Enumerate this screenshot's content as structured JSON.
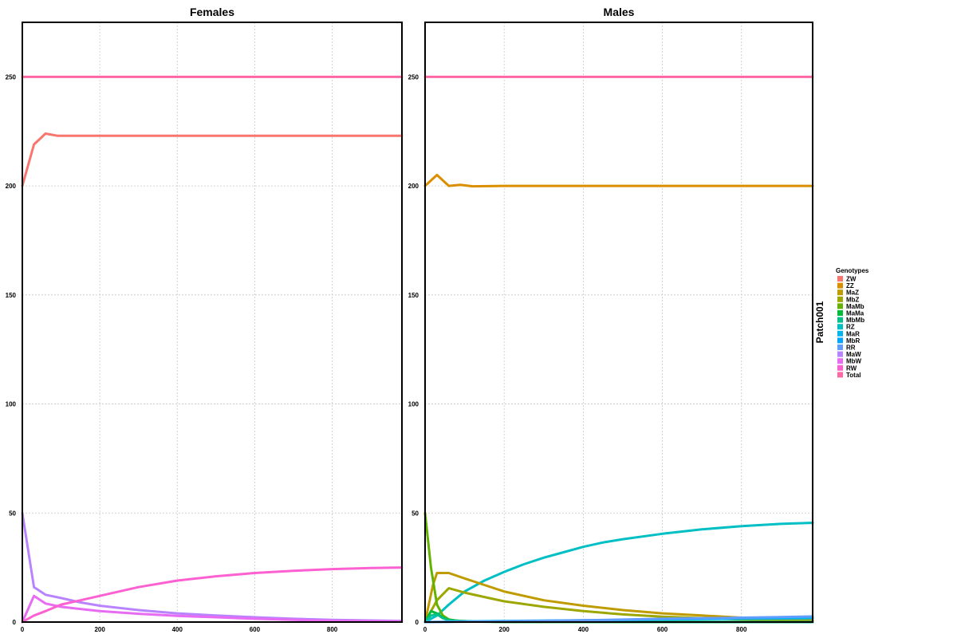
{
  "chart_data": {
    "type": "line",
    "strip_label": "Patch001",
    "legend": {
      "title": "Genotypes",
      "placement": "right",
      "entries": [
        {
          "name": "ZW",
          "color": "#F8766D"
        },
        {
          "name": "ZZ",
          "color": "#DB8E00"
        },
        {
          "name": "MaZ",
          "color": "#C09B00"
        },
        {
          "name": "MbZ",
          "color": "#9DA700"
        },
        {
          "name": "MaMb",
          "color": "#64B200"
        },
        {
          "name": "MaMa",
          "color": "#00BA38"
        },
        {
          "name": "MbMb",
          "color": "#00C08B"
        },
        {
          "name": "RZ",
          "color": "#00BFC4"
        },
        {
          "name": "MaR",
          "color": "#00B4F0"
        },
        {
          "name": "MbR",
          "color": "#00A5FF"
        },
        {
          "name": "RR",
          "color": "#619CFF"
        },
        {
          "name": "MaW",
          "color": "#B983FF"
        },
        {
          "name": "MbW",
          "color": "#E76BF3"
        },
        {
          "name": "RW",
          "color": "#FD61D1"
        },
        {
          "name": "Total",
          "color": "#FF67A4"
        }
      ]
    },
    "panels": [
      {
        "title": "Females",
        "xlim": [
          0,
          980
        ],
        "ylim": [
          0,
          275
        ],
        "x_ticks": [
          0,
          200,
          400,
          600,
          800
        ],
        "y_ticks": [
          0,
          50,
          100,
          150,
          200,
          250
        ],
        "grid": true,
        "series": [
          {
            "name": "Total",
            "color": "#FF67A4",
            "x": [
              0,
              980
            ],
            "y": [
              250,
              250
            ]
          },
          {
            "name": "ZW",
            "color": "#F8766D",
            "x": [
              0,
              30,
              60,
              90,
              120,
              200,
              400,
              600,
              800,
              980
            ],
            "y": [
              200,
              219,
              224,
              223,
              223,
              223,
              223,
              223,
              223,
              223
            ]
          },
          {
            "name": "MaW",
            "color": "#B983FF",
            "x": [
              0,
              30,
              60,
              100,
              150,
              200,
              300,
              400,
              500,
              600,
              700,
              800,
              980
            ],
            "y": [
              50,
              16,
              12.5,
              11,
              9,
              7.5,
              5.5,
              4,
              3,
              2.2,
              1.5,
              1,
              0.5
            ]
          },
          {
            "name": "MbW",
            "color": "#E76BF3",
            "x": [
              0,
              30,
              60,
              100,
              150,
              200,
              300,
              400,
              500,
              600,
              700,
              800,
              980
            ],
            "y": [
              0,
              12,
              8.5,
              7,
              6,
              5,
              3.8,
              2.8,
              2.2,
              1.5,
              1,
              0.6,
              0.3
            ]
          },
          {
            "name": "RW",
            "color": "#FD61D1",
            "x": [
              0,
              30,
              60,
              100,
              150,
              200,
              250,
              300,
              400,
              500,
              600,
              700,
              800,
              900,
              980
            ],
            "y": [
              0,
              3,
              5,
              8,
              10,
              12,
              14,
              16,
              19,
              21,
              22.5,
              23.5,
              24.3,
              24.8,
              25
            ]
          }
        ]
      },
      {
        "title": "Males",
        "xlim": [
          0,
          980
        ],
        "ylim": [
          0,
          275
        ],
        "x_ticks": [
          0,
          200,
          400,
          600,
          800
        ],
        "y_ticks": [
          0,
          50,
          100,
          150,
          200,
          250
        ],
        "grid": true,
        "series": [
          {
            "name": "Total",
            "color": "#FF67A4",
            "x": [
              0,
              980
            ],
            "y": [
              250,
              250
            ]
          },
          {
            "name": "ZZ",
            "color": "#DB8E00",
            "x": [
              0,
              30,
              60,
              90,
              120,
              200,
              400,
              600,
              800,
              980
            ],
            "y": [
              200,
              205,
              200,
              200.5,
              199.8,
              200,
              200,
              200,
              200,
              200
            ]
          },
          {
            "name": "RZ",
            "color": "#00BFC4",
            "x": [
              0,
              30,
              60,
              100,
              150,
              200,
              250,
              300,
              350,
              400,
              450,
              500,
              600,
              700,
              800,
              900,
              980
            ],
            "y": [
              0,
              3,
              8,
              14,
              19,
              23,
              26.5,
              29.5,
              32,
              34.5,
              36.5,
              38,
              40.5,
              42.5,
              44,
              45,
              45.5
            ]
          },
          {
            "name": "MaZ",
            "color": "#C09B00",
            "x": [
              0,
              20,
              30,
              60,
              100,
              150,
              200,
              300,
              400,
              500,
              600,
              700,
              800,
              900,
              980
            ],
            "y": [
              0,
              17,
              22.5,
              22.5,
              20,
              17,
              14,
              10,
              7.5,
              5.5,
              4,
              3,
              2,
              1.2,
              0.8
            ]
          },
          {
            "name": "MbZ",
            "color": "#9DA700",
            "x": [
              0,
              30,
              60,
              100,
              150,
              200,
              300,
              400,
              500,
              600,
              700,
              800,
              900,
              980
            ],
            "y": [
              0,
              10,
              15.5,
              13.5,
              11.5,
              9.5,
              7,
              5,
              3.5,
              2.5,
              1.8,
              1.2,
              0.8,
              0.5
            ]
          },
          {
            "name": "MaMb",
            "color": "#64B200",
            "x": [
              0,
              15,
              30,
              45,
              60,
              80,
              120,
              200,
              980
            ],
            "y": [
              50,
              25,
              8,
              3,
              1.2,
              0.6,
              0.3,
              0.1,
              0
            ]
          },
          {
            "name": "MaMa",
            "color": "#00BA38",
            "x": [
              0,
              15,
              30,
              45,
              60,
              90,
              120,
              200,
              980
            ],
            "y": [
              0,
              5,
              4,
              2,
              1,
              0.5,
              0.3,
              0.1,
              0
            ]
          },
          {
            "name": "MbMb",
            "color": "#00C08B",
            "x": [
              0,
              15,
              30,
              45,
              60,
              90,
              120,
              200,
              980
            ],
            "y": [
              0,
              3,
              3.5,
              1.8,
              0.8,
              0.4,
              0.2,
              0.1,
              0
            ]
          },
          {
            "name": "MaR",
            "color": "#00B4F0",
            "x": [
              0,
              100,
              200,
              400,
              600,
              800,
              980
            ],
            "y": [
              0,
              0.3,
              0.5,
              0.8,
              1.2,
              1.5,
              1.8
            ]
          },
          {
            "name": "RR",
            "color": "#619CFF",
            "x": [
              0,
              200,
              400,
              600,
              800,
              900,
              980
            ],
            "y": [
              0,
              0.3,
              0.8,
              1.5,
              2,
              2.3,
              2.6
            ]
          }
        ]
      }
    ]
  }
}
